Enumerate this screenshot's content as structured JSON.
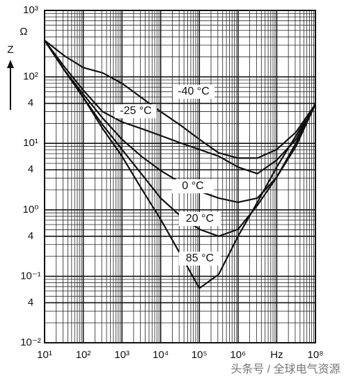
{
  "chart_data": {
    "type": "line",
    "y_label": "Z",
    "y_unit": "Ω",
    "x": [
      10,
      31.6,
      100,
      316,
      1000,
      3160,
      10000,
      31600,
      100000,
      316000,
      1000000,
      3160000,
      10000000,
      31600000,
      100000000
    ],
    "series": [
      {
        "name": "-40 °C",
        "color": "#111111",
        "values": [
          355,
          210,
          138,
          115,
          80,
          49,
          30,
          19,
          11.5,
          7.2,
          6.0,
          6.0,
          8.1,
          14.8,
          39
        ]
      },
      {
        "name": "-25 °C",
        "color": "#111111",
        "values": [
          355,
          145,
          63,
          30,
          21,
          16.7,
          13.1,
          10.2,
          8.1,
          6.4,
          4.4,
          3.5,
          5.6,
          11.5,
          39
        ]
      },
      {
        "name": "0 °C",
        "color": "#111111",
        "values": [
          355,
          129,
          55,
          24,
          11.5,
          6.4,
          3.9,
          2.6,
          1.9,
          1.5,
          1.3,
          1.5,
          3.1,
          9.1,
          39
        ]
      },
      {
        "name": "20 °C",
        "color": "#111111",
        "values": [
          355,
          129,
          49,
          19,
          8.1,
          3.5,
          1.5,
          0.82,
          0.51,
          0.4,
          0.51,
          1.17,
          3.1,
          10.2,
          39
        ]
      },
      {
        "name": "85 °C",
        "color": "#111111",
        "values": [
          355,
          129,
          49,
          16.7,
          6.4,
          2.1,
          0.72,
          0.22,
          0.066,
          0.107,
          0.4,
          1.3,
          4.4,
          13.1,
          39
        ]
      }
    ],
    "xlim": [
      10,
      100000000
    ],
    "ylim": [
      0.01,
      1000
    ],
    "log_x": true,
    "log_y": true,
    "grid": true,
    "xticks": [
      {
        "value": 10,
        "label": "10¹"
      },
      {
        "value": 100,
        "label": "10²"
      },
      {
        "value": 1000,
        "label": "10³"
      },
      {
        "value": 10000,
        "label": "10⁴"
      },
      {
        "value": 100000,
        "label": "10⁵"
      },
      {
        "value": 1000000,
        "label": "10⁶"
      },
      {
        "value": 10000000,
        "label": "Hz"
      },
      {
        "value": 100000000,
        "label": "10⁸"
      }
    ],
    "yticks": [
      {
        "value": 1000,
        "label": "10³"
      },
      {
        "value": 100,
        "label": "10²"
      },
      {
        "value": 40,
        "label": "4"
      },
      {
        "value": 10,
        "label": "10¹"
      },
      4,
      {
        "value": 1,
        "label": "10⁰"
      },
      {
        "value": 0.4,
        "label": "4"
      },
      {
        "value": 0.1,
        "label": "10⁻¹"
      },
      {
        "value": 0.04,
        "label": "4"
      },
      {
        "value": 0.01,
        "label": "10⁻²"
      }
    ],
    "watermark": "头条号 / 全球电气资源"
  }
}
